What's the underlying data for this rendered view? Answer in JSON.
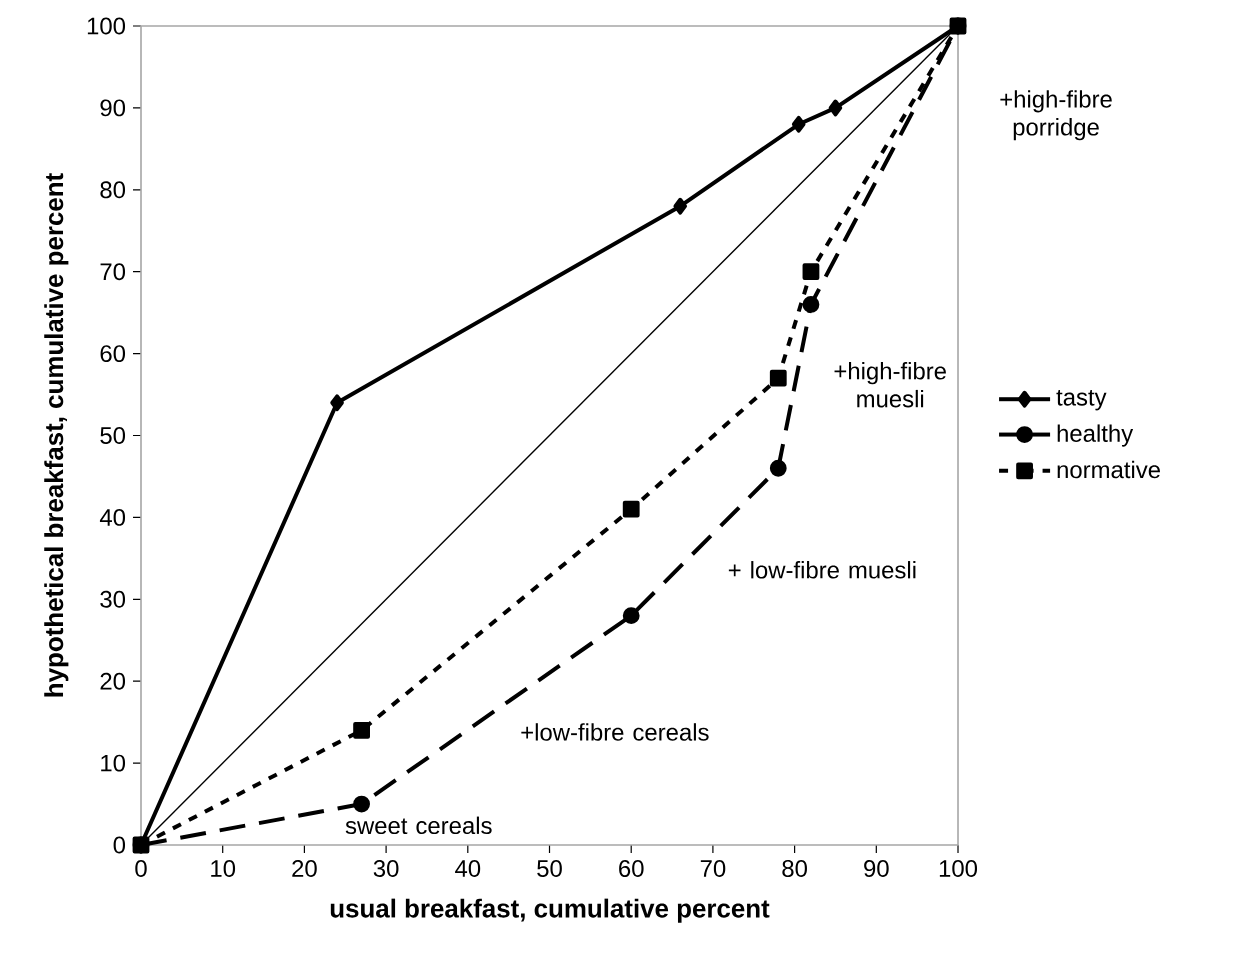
{
  "chart_data": {
    "type": "line",
    "xlabel": "usual breakfast, cumulative percent",
    "ylabel": "hypothetical breakfast, cumulative percent",
    "xlim": [
      0,
      100
    ],
    "ylim": [
      0,
      100
    ],
    "xticks": [
      0,
      10,
      20,
      30,
      40,
      50,
      60,
      70,
      80,
      90,
      100
    ],
    "yticks": [
      0,
      10,
      20,
      30,
      40,
      50,
      60,
      70,
      80,
      90,
      100
    ],
    "grid": false,
    "legend": "right",
    "series": [
      {
        "name": "tasty",
        "x": [
          0,
          24,
          66,
          80.5,
          85,
          100
        ],
        "values": [
          0,
          54,
          78,
          88,
          90,
          100
        ],
        "color": "#000000",
        "line_style": "solid",
        "marker": "diamond"
      },
      {
        "name": "healthy",
        "x": [
          0,
          27,
          60,
          78,
          82,
          100
        ],
        "values": [
          0,
          5,
          28,
          46,
          66,
          100
        ],
        "color": "#000000",
        "line_style": "dashed",
        "marker": "circle"
      },
      {
        "name": "normative",
        "x": [
          0,
          27,
          60,
          78,
          82,
          100
        ],
        "values": [
          0,
          14,
          41,
          57,
          70,
          100
        ],
        "color": "#000000",
        "line_style": "dotted",
        "marker": "square"
      },
      {
        "x": [
          0,
          100
        ],
        "values": [
          0,
          100
        ],
        "color": "#000000",
        "line_style": "solid",
        "marker": "none"
      }
    ],
    "annotations": [
      "sweet cereals",
      "+low-fibre cereals",
      "+ low-fibre muesli",
      "+high-fibre muesli",
      "+high-fibre porridge"
    ]
  }
}
